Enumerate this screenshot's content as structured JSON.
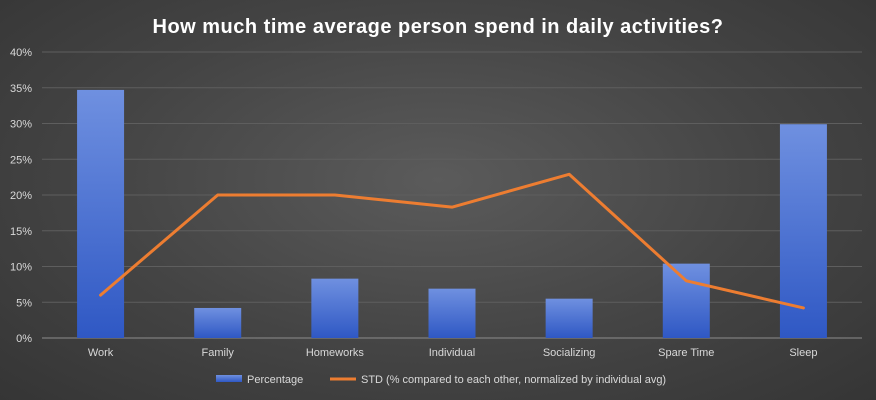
{
  "chart_data": {
    "type": "bar",
    "title": "How much time average person spend in daily activities?",
    "categories": [
      "Work",
      "Family",
      "Homeworks",
      "Individual",
      "Socializing",
      "Spare Time",
      "Sleep"
    ],
    "series": [
      {
        "name": "Percentage",
        "type": "bar",
        "color": "#4a74d6",
        "values": [
          0.347,
          0.042,
          0.083,
          0.069,
          0.055,
          0.104,
          0.299
        ]
      },
      {
        "name": "STD (% compared to each other, normalized by individual avg)",
        "type": "line",
        "color": "#ed7d31",
        "values": [
          0.06,
          0.2,
          0.2,
          0.183,
          0.229,
          0.08,
          0.042
        ]
      }
    ],
    "ylim": [
      0,
      0.4
    ],
    "yticks": [
      0,
      0.05,
      0.1,
      0.15,
      0.2,
      0.25,
      0.3,
      0.35,
      0.4
    ],
    "ytick_labels": [
      "0%",
      "5%",
      "10%",
      "15%",
      "20%",
      "25%",
      "30%",
      "35%",
      "40%"
    ],
    "grid": true,
    "legend_position": "bottom"
  }
}
